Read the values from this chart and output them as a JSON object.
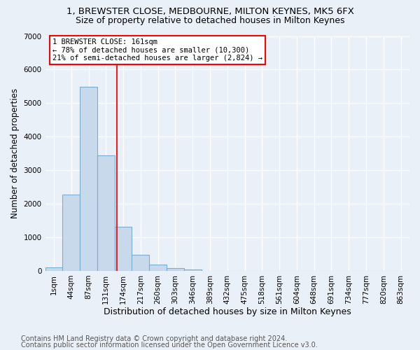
{
  "title1": "1, BREWSTER CLOSE, MEDBOURNE, MILTON KEYNES, MK5 6FX",
  "title2": "Size of property relative to detached houses in Milton Keynes",
  "xlabel": "Distribution of detached houses by size in Milton Keynes",
  "ylabel": "Number of detached properties",
  "footnote1": "Contains HM Land Registry data © Crown copyright and database right 2024.",
  "footnote2": "Contains public sector information licensed under the Open Government Licence v3.0.",
  "bar_labels": [
    "1sqm",
    "44sqm",
    "87sqm",
    "131sqm",
    "174sqm",
    "217sqm",
    "260sqm",
    "303sqm",
    "346sqm",
    "389sqm",
    "432sqm",
    "475sqm",
    "518sqm",
    "561sqm",
    "604sqm",
    "648sqm",
    "691sqm",
    "734sqm",
    "777sqm",
    "820sqm",
    "863sqm"
  ],
  "bar_values": [
    100,
    2280,
    5480,
    3440,
    1310,
    480,
    195,
    90,
    50,
    0,
    0,
    0,
    0,
    0,
    0,
    0,
    0,
    0,
    0,
    0,
    0
  ],
  "bar_color": "#c8d9ec",
  "bar_edge_color": "#7aaed0",
  "vline_x": 3.62,
  "vline_color": "red",
  "annotation_line1": "1 BREWSTER CLOSE: 161sqm",
  "annotation_line2": "← 78% of detached houses are smaller (10,300)",
  "annotation_line3": "21% of semi-detached houses are larger (2,824) →",
  "annotation_box_color": "white",
  "annotation_box_edge": "red",
  "ylim": [
    0,
    7000
  ],
  "bg_color": "#eaf0f8",
  "plot_bg_color": "#eaf0f8",
  "grid_color": "white",
  "title1_fontsize": 9.5,
  "title2_fontsize": 9,
  "xlabel_fontsize": 9,
  "ylabel_fontsize": 8.5,
  "footnote_fontsize": 7,
  "tick_fontsize": 7.5,
  "annot_fontsize": 7.5
}
